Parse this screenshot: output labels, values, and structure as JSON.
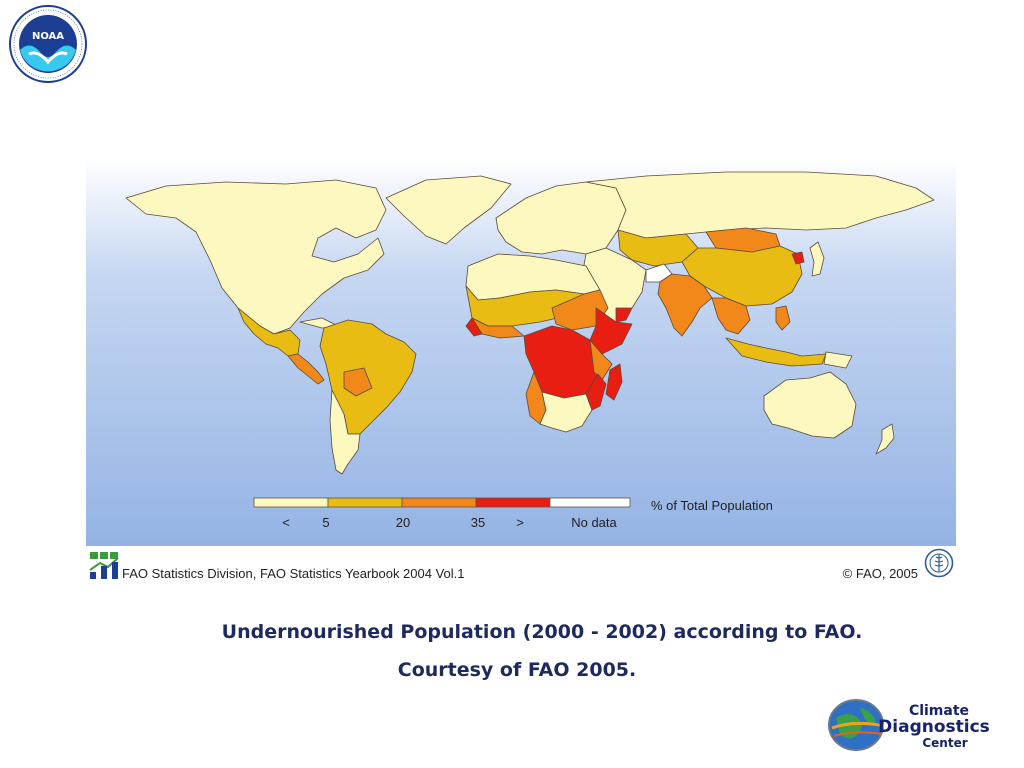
{
  "logos": {
    "noaa_icon": "noaa-logo-icon",
    "noaa_inner_text": "NOAA",
    "cdc_globe_icon": "globe-icon",
    "cdc_line1": "Climate",
    "cdc_line2": "Diagnostics",
    "cdc_line3": "Center"
  },
  "map": {
    "icon": "world-map",
    "legend": {
      "title": "% of Total Population",
      "ticks": [
        "<",
        "5",
        "20",
        "35",
        ">",
        "No data"
      ],
      "classes": [
        {
          "label": "< 5",
          "color": "#fdf7c0"
        },
        {
          "label": "5 - 20",
          "color": "#e8bc12"
        },
        {
          "label": "20 - 35",
          "color": "#f2871a"
        },
        {
          "label": "> 35",
          "color": "#e81e12"
        },
        {
          "label": "No data",
          "color": "#ffffff"
        }
      ]
    },
    "source": "FAO Statistics Division, FAO Statistics Yearbook 2004 Vol.1",
    "copyright": "© FAO, 2005",
    "fao_stat_icon": "bar-chart-icon",
    "fao_emblem_icon": "fao-emblem-icon"
  },
  "caption": {
    "line1": "Undernourished Population (2000 - 2002) according to FAO.",
    "line2": "Courtesy of FAO 2005."
  },
  "colors": {
    "ocean_top": "#c6d7f2",
    "ocean_bottom": "#94b3e4",
    "caption": "#1d2a5e"
  }
}
